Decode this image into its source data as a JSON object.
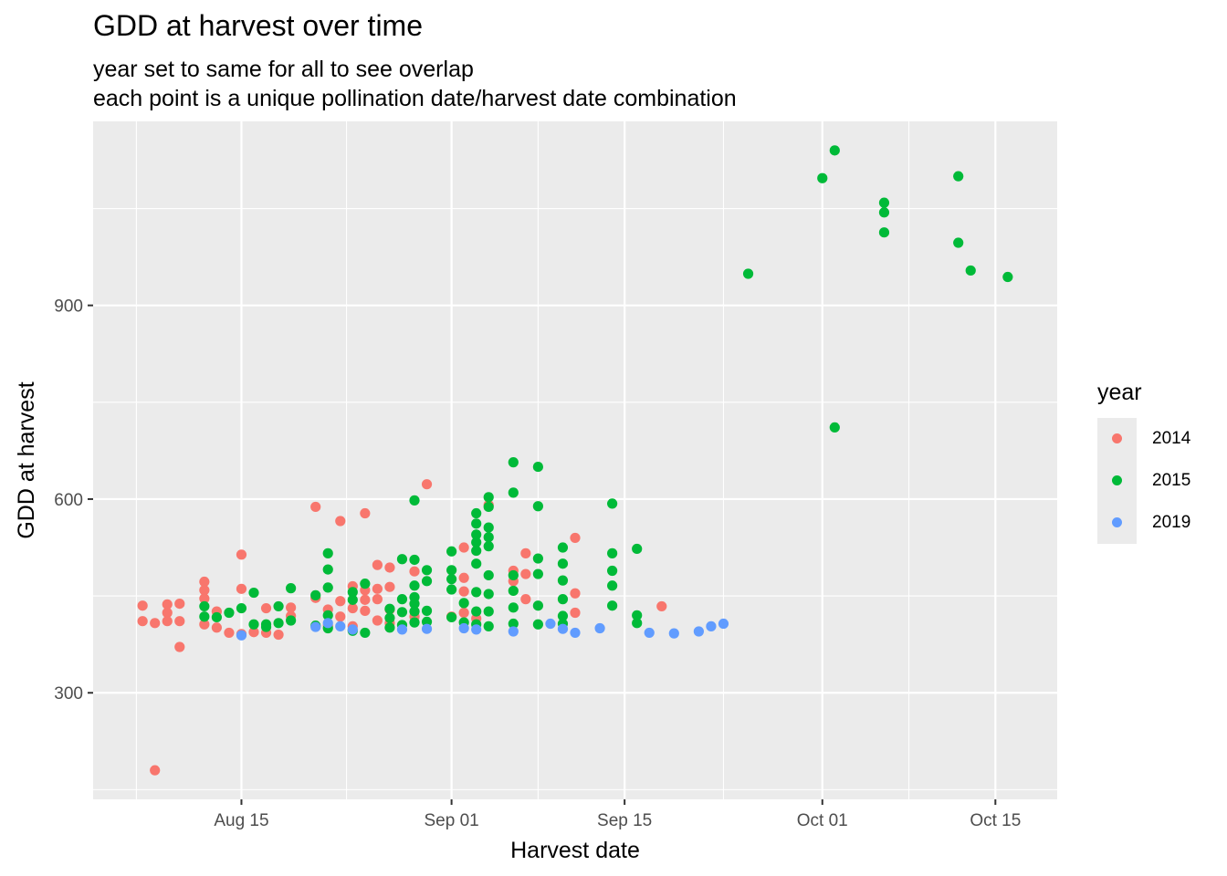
{
  "title": "GDD at harvest over time",
  "subtitle": [
    "year set to same for all to see overlap",
    "each point is a unique pollination date/harvest date combination"
  ],
  "chart_data": {
    "type": "scatter",
    "title": "GDD at harvest over time",
    "xlabel": "Harvest date",
    "ylabel": "GDD at harvest",
    "x_ticks": [
      "Aug 15",
      "Sep 01",
      "Sep 15",
      "Oct 01",
      "Oct 15"
    ],
    "y_ticks": [
      300,
      600,
      900
    ],
    "xlim": [
      "2020-08-03",
      "2020-10-20"
    ],
    "ylim": [
      135,
      1185
    ],
    "grid": true,
    "legend": {
      "title": "year",
      "position": "right"
    },
    "series": [
      {
        "name": "2014",
        "color": "#F8766D",
        "points": [
          [
            "2020-08-07",
            435
          ],
          [
            "2020-08-07",
            411
          ],
          [
            "2020-08-08",
            408
          ],
          [
            "2020-08-08",
            180
          ],
          [
            "2020-08-09",
            437
          ],
          [
            "2020-08-09",
            424
          ],
          [
            "2020-08-09",
            411
          ],
          [
            "2020-08-10",
            438
          ],
          [
            "2020-08-10",
            411
          ],
          [
            "2020-08-10",
            371
          ],
          [
            "2020-08-12",
            472
          ],
          [
            "2020-08-12",
            459
          ],
          [
            "2020-08-12",
            446
          ],
          [
            "2020-08-12",
            406
          ],
          [
            "2020-08-13",
            426
          ],
          [
            "2020-08-13",
            401
          ],
          [
            "2020-08-14",
            393
          ],
          [
            "2020-08-15",
            514
          ],
          [
            "2020-08-15",
            461
          ],
          [
            "2020-08-15",
            391
          ],
          [
            "2020-08-16",
            394
          ],
          [
            "2020-08-17",
            431
          ],
          [
            "2020-08-17",
            393
          ],
          [
            "2020-08-18",
            390
          ],
          [
            "2020-08-19",
            432
          ],
          [
            "2020-08-19",
            419
          ],
          [
            "2020-08-21",
            588
          ],
          [
            "2020-08-21",
            447
          ],
          [
            "2020-08-22",
            429
          ],
          [
            "2020-08-22",
            404
          ],
          [
            "2020-08-23",
            566
          ],
          [
            "2020-08-23",
            442
          ],
          [
            "2020-08-23",
            418
          ],
          [
            "2020-08-24",
            465
          ],
          [
            "2020-08-24",
            431
          ],
          [
            "2020-08-24",
            403
          ],
          [
            "2020-08-25",
            578
          ],
          [
            "2020-08-25",
            459
          ],
          [
            "2020-08-25",
            444
          ],
          [
            "2020-08-25",
            427
          ],
          [
            "2020-08-26",
            498
          ],
          [
            "2020-08-26",
            461
          ],
          [
            "2020-08-26",
            445
          ],
          [
            "2020-08-26",
            412
          ],
          [
            "2020-08-27",
            494
          ],
          [
            "2020-08-27",
            464
          ],
          [
            "2020-08-27",
            429
          ],
          [
            "2020-08-27",
            408
          ],
          [
            "2020-08-29",
            488
          ],
          [
            "2020-08-29",
            418
          ],
          [
            "2020-08-30",
            623
          ],
          [
            "2020-09-01",
            418
          ],
          [
            "2020-09-02",
            525
          ],
          [
            "2020-09-02",
            478
          ],
          [
            "2020-09-02",
            457
          ],
          [
            "2020-09-02",
            424
          ],
          [
            "2020-09-03",
            415
          ],
          [
            "2020-09-04",
            591
          ],
          [
            "2020-09-06",
            473
          ],
          [
            "2020-09-06",
            489
          ],
          [
            "2020-09-07",
            516
          ],
          [
            "2020-09-07",
            484
          ],
          [
            "2020-09-07",
            445
          ],
          [
            "2020-09-11",
            540
          ],
          [
            "2020-09-11",
            454
          ],
          [
            "2020-09-11",
            424
          ],
          [
            "2020-09-18",
            434
          ]
        ]
      },
      {
        "name": "2015",
        "color": "#00BA38",
        "points": [
          [
            "2020-08-12",
            434
          ],
          [
            "2020-08-12",
            418
          ],
          [
            "2020-08-13",
            417
          ],
          [
            "2020-08-14",
            424
          ],
          [
            "2020-08-15",
            431
          ],
          [
            "2020-08-16",
            455
          ],
          [
            "2020-08-16",
            406
          ],
          [
            "2020-08-17",
            406
          ],
          [
            "2020-08-17",
            402
          ],
          [
            "2020-08-18",
            434
          ],
          [
            "2020-08-18",
            408
          ],
          [
            "2020-08-19",
            462
          ],
          [
            "2020-08-19",
            412
          ],
          [
            "2020-08-21",
            451
          ],
          [
            "2020-08-21",
            404
          ],
          [
            "2020-08-22",
            516
          ],
          [
            "2020-08-22",
            491
          ],
          [
            "2020-08-22",
            463
          ],
          [
            "2020-08-22",
            420
          ],
          [
            "2020-08-22",
            400
          ],
          [
            "2020-08-24",
            456
          ],
          [
            "2020-08-24",
            444
          ],
          [
            "2020-08-24",
            396
          ],
          [
            "2020-08-25",
            469
          ],
          [
            "2020-08-25",
            393
          ],
          [
            "2020-08-27",
            430
          ],
          [
            "2020-08-27",
            416
          ],
          [
            "2020-08-27",
            401
          ],
          [
            "2020-08-28",
            507
          ],
          [
            "2020-08-28",
            445
          ],
          [
            "2020-08-28",
            425
          ],
          [
            "2020-08-28",
            405
          ],
          [
            "2020-08-29",
            598
          ],
          [
            "2020-08-29",
            506
          ],
          [
            "2020-08-29",
            466
          ],
          [
            "2020-08-29",
            448
          ],
          [
            "2020-08-29",
            438
          ],
          [
            "2020-08-29",
            426
          ],
          [
            "2020-08-29",
            409
          ],
          [
            "2020-08-30",
            490
          ],
          [
            "2020-08-30",
            473
          ],
          [
            "2020-08-30",
            427
          ],
          [
            "2020-08-30",
            410
          ],
          [
            "2020-09-01",
            519
          ],
          [
            "2020-09-01",
            490
          ],
          [
            "2020-09-01",
            476
          ],
          [
            "2020-09-01",
            460
          ],
          [
            "2020-09-01",
            417
          ],
          [
            "2020-09-02",
            439
          ],
          [
            "2020-09-02",
            409
          ],
          [
            "2020-09-03",
            578
          ],
          [
            "2020-09-03",
            562
          ],
          [
            "2020-09-03",
            545
          ],
          [
            "2020-09-03",
            533
          ],
          [
            "2020-09-03",
            520
          ],
          [
            "2020-09-03",
            500
          ],
          [
            "2020-09-03",
            456
          ],
          [
            "2020-09-03",
            426
          ],
          [
            "2020-09-03",
            406
          ],
          [
            "2020-09-04",
            603
          ],
          [
            "2020-09-04",
            588
          ],
          [
            "2020-09-04",
            556
          ],
          [
            "2020-09-04",
            541
          ],
          [
            "2020-09-04",
            527
          ],
          [
            "2020-09-04",
            482
          ],
          [
            "2020-09-04",
            453
          ],
          [
            "2020-09-04",
            426
          ],
          [
            "2020-09-04",
            403
          ],
          [
            "2020-09-06",
            657
          ],
          [
            "2020-09-06",
            610
          ],
          [
            "2020-09-06",
            482
          ],
          [
            "2020-09-06",
            458
          ],
          [
            "2020-09-06",
            432
          ],
          [
            "2020-09-06",
            407
          ],
          [
            "2020-09-08",
            650
          ],
          [
            "2020-09-08",
            589
          ],
          [
            "2020-09-08",
            508
          ],
          [
            "2020-09-08",
            484
          ],
          [
            "2020-09-08",
            435
          ],
          [
            "2020-09-08",
            406
          ],
          [
            "2020-09-10",
            525
          ],
          [
            "2020-09-10",
            500
          ],
          [
            "2020-09-10",
            474
          ],
          [
            "2020-09-10",
            445
          ],
          [
            "2020-09-10",
            419
          ],
          [
            "2020-09-10",
            407
          ],
          [
            "2020-09-14",
            593
          ],
          [
            "2020-09-14",
            516
          ],
          [
            "2020-09-14",
            489
          ],
          [
            "2020-09-14",
            466
          ],
          [
            "2020-09-14",
            435
          ],
          [
            "2020-09-16",
            523
          ],
          [
            "2020-09-16",
            420
          ],
          [
            "2020-09-16",
            408
          ],
          [
            "2020-09-25",
            949
          ],
          [
            "2020-10-01",
            1097
          ],
          [
            "2020-10-02",
            1140
          ],
          [
            "2020-10-02",
            711
          ],
          [
            "2020-10-06",
            1059
          ],
          [
            "2020-10-06",
            1044
          ],
          [
            "2020-10-06",
            1013
          ],
          [
            "2020-10-12",
            1100
          ],
          [
            "2020-10-12",
            997
          ],
          [
            "2020-10-13",
            954
          ],
          [
            "2020-10-16",
            944
          ]
        ]
      },
      {
        "name": "2019",
        "color": "#619CFF",
        "points": [
          [
            "2020-08-15",
            389
          ],
          [
            "2020-08-21",
            402
          ],
          [
            "2020-08-22",
            408
          ],
          [
            "2020-08-23",
            403
          ],
          [
            "2020-08-24",
            398
          ],
          [
            "2020-08-28",
            398
          ],
          [
            "2020-08-30",
            399
          ],
          [
            "2020-09-02",
            400
          ],
          [
            "2020-09-03",
            398
          ],
          [
            "2020-09-06",
            395
          ],
          [
            "2020-09-09",
            407
          ],
          [
            "2020-09-10",
            399
          ],
          [
            "2020-09-11",
            393
          ],
          [
            "2020-09-13",
            400
          ],
          [
            "2020-09-17",
            393
          ],
          [
            "2020-09-19",
            392
          ],
          [
            "2020-09-21",
            395
          ],
          [
            "2020-09-22",
            403
          ],
          [
            "2020-09-23",
            407
          ]
        ]
      }
    ]
  }
}
